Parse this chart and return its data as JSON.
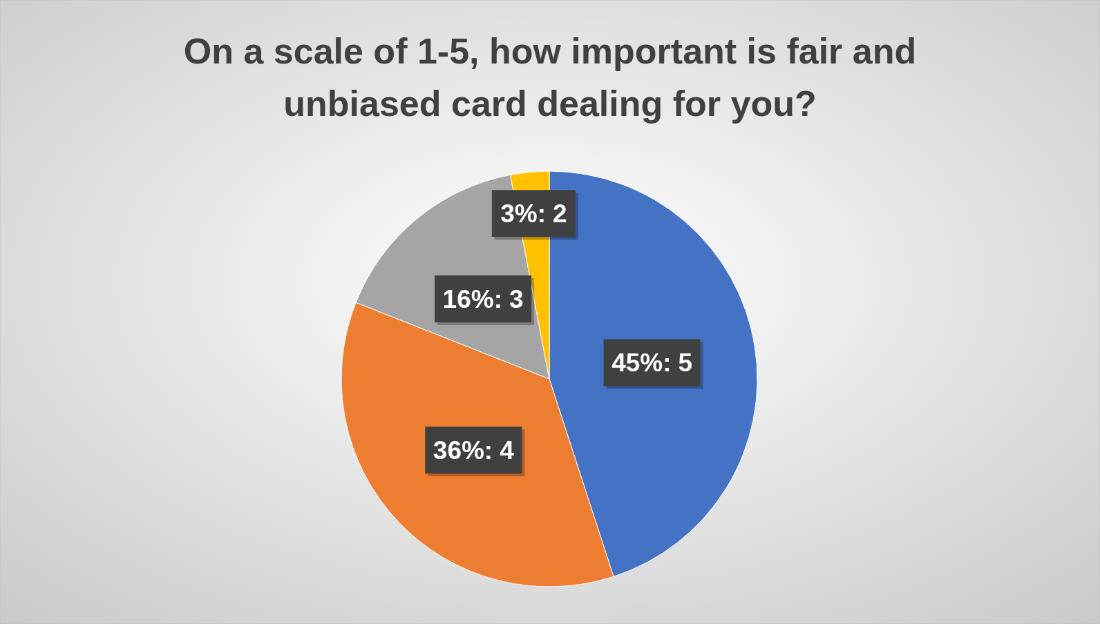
{
  "chart_data": {
    "type": "pie",
    "title": "On a scale of 1-5, how important is fair and unbiased card dealing for you?",
    "categories": [
      "5",
      "4",
      "3",
      "2"
    ],
    "values": [
      45,
      36,
      16,
      3
    ],
    "colors": [
      "#4472c4",
      "#ed7d31",
      "#a5a5a5",
      "#ffc000"
    ],
    "value_labels": [
      "45%:",
      "36%:",
      "16%:",
      "3%:"
    ],
    "legend": false
  }
}
